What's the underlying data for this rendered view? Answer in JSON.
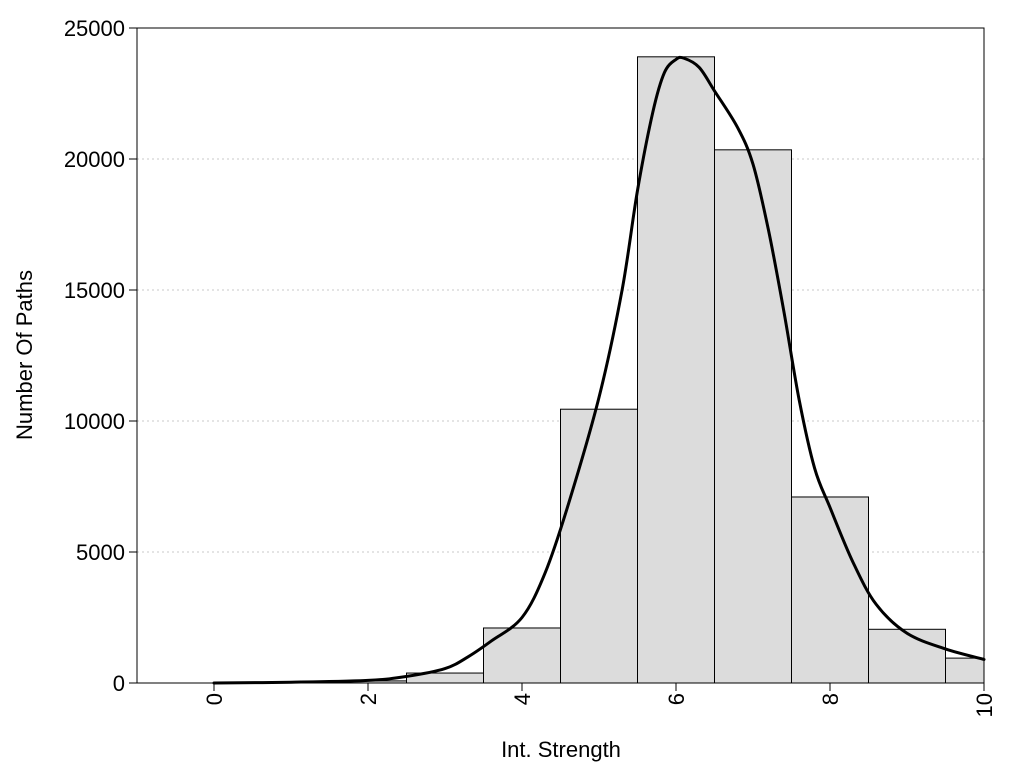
{
  "chart_data": {
    "type": "bar",
    "xlabel": "Int. Strength",
    "ylabel": "Number Of Paths",
    "xlim": [
      -1,
      10
    ],
    "ylim": [
      0,
      25000
    ],
    "x_ticks": [
      "0",
      "2",
      "4",
      "6",
      "8",
      "10"
    ],
    "x_tick_values": [
      0,
      2,
      4,
      6,
      8,
      10
    ],
    "y_ticks": [
      "0",
      "5000",
      "10000",
      "15000",
      "20000",
      "25000"
    ],
    "y_tick_values": [
      0,
      5000,
      10000,
      15000,
      20000,
      25000
    ],
    "grid": "horizontal dotted",
    "bar_color": "#dcdcdc",
    "line_color": "#000000",
    "bars": {
      "centers": [
        0,
        1,
        2,
        3,
        4,
        5,
        6,
        7,
        8,
        9,
        10
      ],
      "values": [
        0,
        20,
        80,
        380,
        2100,
        10450,
        23900,
        20350,
        7100,
        2050,
        950
      ]
    },
    "curve": {
      "x": [
        0,
        1,
        2,
        2.5,
        3,
        3.3,
        3.6,
        4,
        4.3,
        4.6,
        5,
        5.3,
        5.5,
        5.7,
        5.85,
        6,
        6.1,
        6.3,
        6.5,
        6.8,
        7,
        7.2,
        7.4,
        7.6,
        7.8,
        8,
        8.3,
        8.6,
        9,
        9.5,
        10
      ],
      "y": [
        0,
        30,
        100,
        250,
        550,
        1000,
        1600,
        2500,
        4200,
        6800,
        10900,
        15000,
        18800,
        21800,
        23300,
        23800,
        23850,
        23500,
        22600,
        21200,
        19800,
        17300,
        14200,
        10800,
        8200,
        6700,
        4600,
        3000,
        1900,
        1300,
        900
      ]
    }
  }
}
